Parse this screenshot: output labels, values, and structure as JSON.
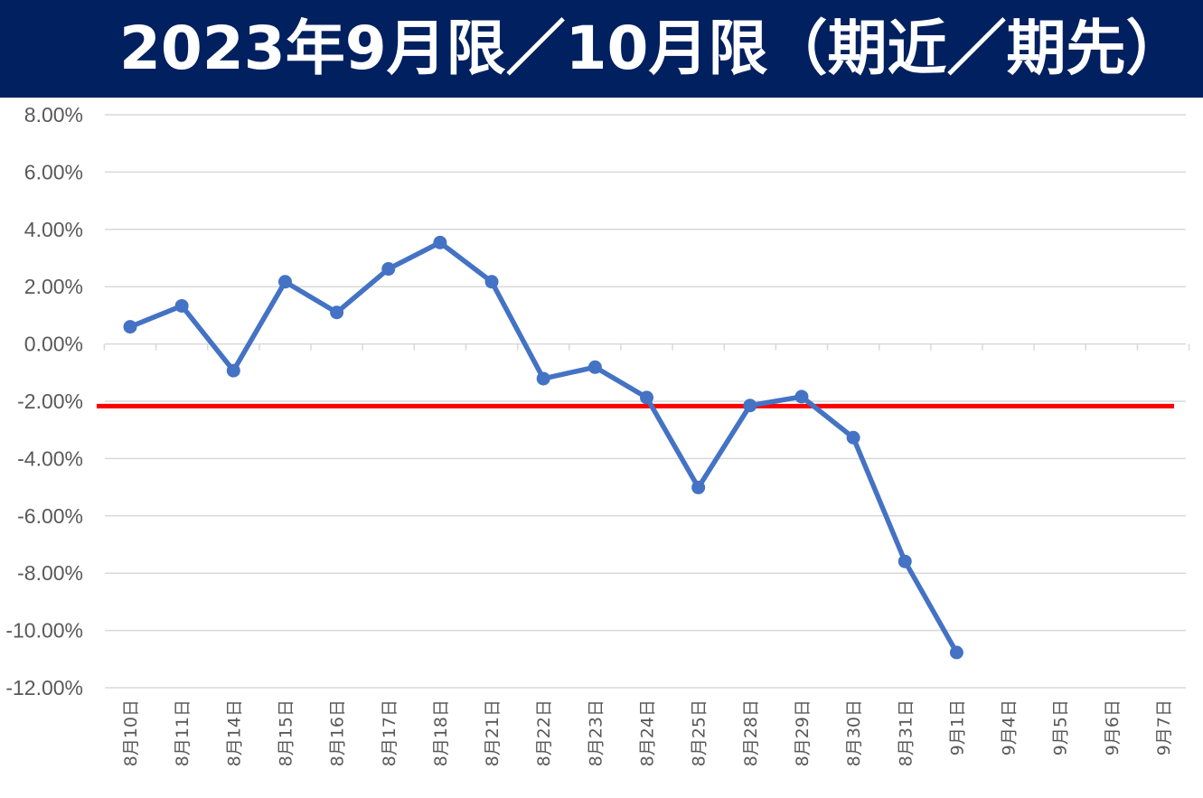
{
  "title": "2023年9月限／10月限（期近／期先）",
  "colors": {
    "banner_bg": "#002060",
    "title_text": "#ffffff",
    "series_line": "#4472C4",
    "reference_line": "#FF0000",
    "grid": "#D9D9D9",
    "tick_text": "#595959"
  },
  "chart_data": {
    "type": "line",
    "title": "2023年9月限／10月限（期近／期先）",
    "xlabel": "",
    "ylabel": "",
    "ylim": [
      -0.12,
      0.08
    ],
    "y_tick_step": 0.02,
    "y_tick_labels": [
      "8.00%",
      "6.00%",
      "4.00%",
      "2.00%",
      "0.00%",
      "-2.00%",
      "-4.00%",
      "-6.00%",
      "-8.00%",
      "-10.00%",
      "-12.00%"
    ],
    "grid": true,
    "legend": "none",
    "categories": [
      "8月10日",
      "8月11日",
      "8月14日",
      "8月15日",
      "8月16日",
      "8月17日",
      "8月18日",
      "8月21日",
      "8月22日",
      "8月23日",
      "8月24日",
      "8月25日",
      "8月28日",
      "8月29日",
      "8月30日",
      "8月31日",
      "9月1日",
      "9月4日",
      "9月5日",
      "9月6日",
      "9月7日"
    ],
    "series": [
      {
        "values": [
          0.006,
          0.0133,
          -0.0093,
          0.0217,
          0.011,
          0.0262,
          0.0354,
          0.0217,
          -0.0121,
          -0.0081,
          -0.0187,
          -0.0501,
          -0.0215,
          -0.0184,
          -0.0327,
          -0.0759,
          -0.1077,
          null,
          null,
          null,
          null
        ]
      }
    ],
    "reference_line": {
      "value": -0.0217
    }
  }
}
